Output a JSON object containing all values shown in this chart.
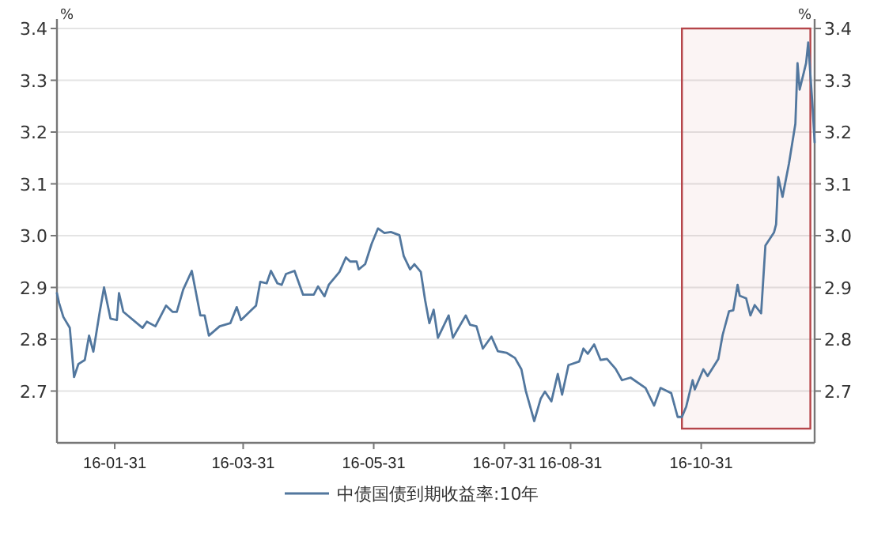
{
  "chart_data": {
    "type": "line",
    "ylabel": "%",
    "y2label": "%",
    "xlim": [
      "--01-04",
      "--12-23"
    ],
    "xticks": [
      {
        "value": "--01-31",
        "label": "16-01-31"
      },
      {
        "value": "--03-31",
        "label": "16-03-31"
      },
      {
        "value": "--05-31",
        "label": "16-05-31"
      },
      {
        "value": "--07-31",
        "label": "16-07-31"
      },
      {
        "value": "--08-31",
        "label": "16-08-31"
      },
      {
        "value": "--10-31",
        "label": "16-10-31"
      }
    ],
    "ylim": [
      2.6,
      3.4
    ],
    "yticks": [
      2.7,
      2.8,
      2.9,
      {
        "value": 3,
        "label": "3.0"
      },
      3.1,
      3.2,
      3.3,
      3.4
    ],
    "y2lim": [
      2.6,
      3.4
    ],
    "y2ticks": [
      2.7,
      2.8,
      2.9,
      {
        "value": 3,
        "label": "3.0"
      },
      3.1,
      3.2,
      3.3,
      3.4
    ],
    "grid": "y",
    "legend": "bottom",
    "bands": [
      {
        "axis": "x",
        "from": "--10-22",
        "to": "--12-21",
        "color": "#b5454a"
      }
    ],
    "series": [
      {
        "name": "中债国债到期收益率:10年",
        "color": "#52779e",
        "x": [
          "--01-04",
          "--01-05",
          "--01-07",
          "--01-10",
          "--01-12",
          "--01-14",
          "--01-17",
          "--01-19",
          "--01-21",
          "--01-24",
          "--01-26",
          "--01-29",
          "--02-01",
          "--02-02",
          "--02-04",
          "--02-13",
          "--02-15",
          "--02-19",
          "--02-24",
          "--02-27",
          "--02-29",
          "--03-03",
          "--03-07",
          "--03-11",
          "--03-13",
          "--03-15",
          "--03-20",
          "--03-25",
          "--03-28",
          "--03-30",
          "--04-03",
          "--04-06",
          "--04-08",
          "--04-11",
          "--04-13",
          "--04-16",
          "--04-18",
          "--04-20",
          "--04-24",
          "--04-28",
          "--05-03",
          "--05-05",
          "--05-08",
          "--05-10",
          "--05-15",
          "--05-18",
          "--05-20",
          "--05-23",
          "--05-24",
          "--05-27",
          "--05-30",
          "--06-02",
          "--06-05",
          "--06-08",
          "--06-12",
          "--06-14",
          "--06-17",
          "--06-19",
          "--06-22",
          "--06-24",
          "--06-26",
          "--06-28",
          "--06-30",
          "--07-05",
          "--07-07",
          "--07-13",
          "--07-15",
          "--07-18",
          "--07-21",
          "--07-25",
          "--07-28",
          "--08-01",
          "--08-05",
          "--08-08",
          "--08-10",
          "--08-14",
          "--08-17",
          "--08-19",
          "--08-22",
          "--08-25",
          "--08-27",
          "--08-30",
          "--09-04",
          "--09-06",
          "--09-08",
          "--09-11",
          "--09-14",
          "--09-17",
          "--09-21",
          "--09-24",
          "--09-28",
          "--10-05",
          "--10-09",
          "--10-12",
          "--10-15",
          "--10-17",
          "--10-20",
          "--10-22",
          "--10-24",
          "--10-27",
          "--10-28",
          "--11-01",
          "--11-03",
          "--11-08",
          "--11-10",
          "--11-13",
          "--11-15",
          "--11-17",
          "--11-18",
          "--11-21",
          "--11-23",
          "--11-25",
          "--11-28",
          "--11-30",
          "--12-04",
          "--12-05",
          "--12-06",
          "--12-08",
          "--12-11",
          "--12-14",
          "--12-15",
          "--12-16",
          "--12-19",
          "--12-20",
          "--12-22",
          "--12-23"
        ],
        "values": [
          2.889,
          2.87,
          2.843,
          2.822,
          2.727,
          2.752,
          2.76,
          2.807,
          2.776,
          2.853,
          2.9,
          2.84,
          2.837,
          2.889,
          2.853,
          2.822,
          2.834,
          2.825,
          2.865,
          2.853,
          2.853,
          2.896,
          2.932,
          2.846,
          2.846,
          2.807,
          2.825,
          2.831,
          2.862,
          2.837,
          2.853,
          2.865,
          2.911,
          2.908,
          2.932,
          2.908,
          2.905,
          2.926,
          2.932,
          2.886,
          2.886,
          2.902,
          2.883,
          2.905,
          2.93,
          2.958,
          2.95,
          2.95,
          2.935,
          2.945,
          2.984,
          3.014,
          3.005,
          3.007,
          3.001,
          2.961,
          2.935,
          2.945,
          2.93,
          2.876,
          2.831,
          2.857,
          2.803,
          2.846,
          2.803,
          2.846,
          2.828,
          2.825,
          2.782,
          2.805,
          2.777,
          2.774,
          2.764,
          2.742,
          2.701,
          2.642,
          2.685,
          2.699,
          2.68,
          2.733,
          2.693,
          2.75,
          2.757,
          2.782,
          2.772,
          2.79,
          2.76,
          2.762,
          2.743,
          2.721,
          2.726,
          2.706,
          2.672,
          2.706,
          2.7,
          2.696,
          2.65,
          2.65,
          2.67,
          2.721,
          2.703,
          2.742,
          2.729,
          2.762,
          2.808,
          2.854,
          2.856,
          2.905,
          2.884,
          2.879,
          2.846,
          2.866,
          2.85,
          2.981,
          3.006,
          3.022,
          3.113,
          3.075,
          3.139,
          3.216,
          3.333,
          3.282,
          3.333,
          3.373,
          3.251,
          3.18
        ]
      }
    ]
  }
}
